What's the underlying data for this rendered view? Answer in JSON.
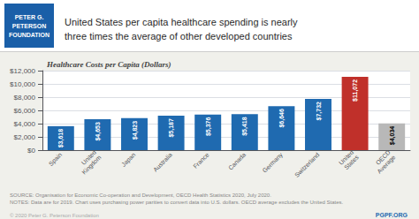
{
  "chart_data": {
    "type": "bar",
    "title": "Healthcare Costs per Capita (Dollars)",
    "subtitle": "United States per capita healthcare spending is nearly\nthree times the average of other developed countries",
    "categories": [
      "Spain",
      "United\nKingdom",
      "Japan",
      "Australia",
      "France",
      "Canada",
      "Germany",
      "Switzerland",
      "United\nStates",
      "OECD\nAverage"
    ],
    "values": [
      3618,
      4653,
      4823,
      5187,
      5376,
      5418,
      6646,
      7732,
      11072,
      4034
    ],
    "value_labels": [
      "$3,618",
      "$4,653",
      "$4,823",
      "$5,187",
      "$5,376",
      "$5,418",
      "$6,646",
      "$7,732",
      "$11,072",
      "$4,034"
    ],
    "data_labels": true,
    "colors": [
      "#1f6ab0",
      "#1f6ab0",
      "#1f6ab0",
      "#1f6ab0",
      "#1f6ab0",
      "#1f6ab0",
      "#1f6ab0",
      "#1f6ab0",
      "#c0302a",
      "#b8b8b8"
    ],
    "ylim": [
      0,
      12000
    ],
    "yticks": [
      {
        "value": 0,
        "label": "$0"
      },
      {
        "value": 2000,
        "label": "$2,000"
      },
      {
        "value": 4000,
        "label": "$4,000"
      },
      {
        "value": 6000,
        "label": "$6,000"
      },
      {
        "value": 8000,
        "label": "$8,000"
      },
      {
        "value": 10000,
        "label": "$10,000"
      },
      {
        "value": 12000,
        "label": "$12,000"
      }
    ],
    "grid": true,
    "annotations": [
      "PETER G.\nPETERSON\nFOUNDATION",
      "SOURCE: Organisation for Economic Co-operation and Development, OECD Health Statistics 2020, July 2020.\nNOTES: Data are for 2019. Chart uses purchasing power parities to convert data into U.S. dollars. OECD average excludes the United States.",
      "© 2020 Peter G. Peterson Foundation",
      "PGPF.ORG"
    ]
  }
}
